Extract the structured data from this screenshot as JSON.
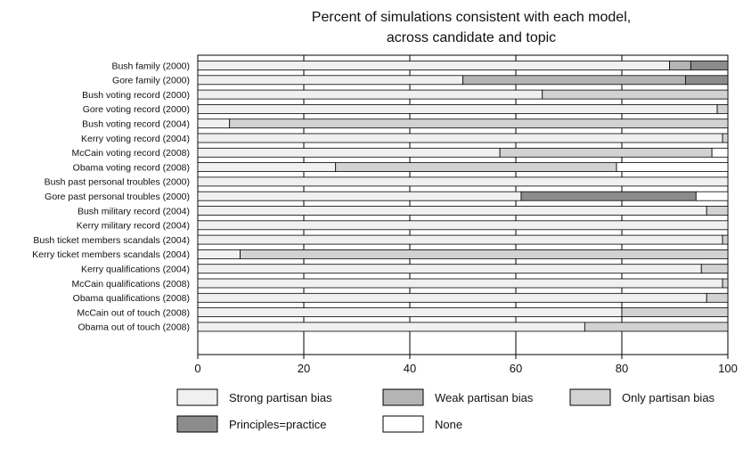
{
  "chart_data": {
    "type": "bar",
    "orientation": "horizontal",
    "stacked": true,
    "title_lines": [
      "Percent of simulations consistent with each model,",
      "across candidate and topic"
    ],
    "categories": [
      "Bush family (2000)",
      "Gore family (2000)",
      "Bush voting record (2000)",
      "Gore voting record (2000)",
      "Bush voting record (2004)",
      "Kerry voting record (2004)",
      "McCain voting record (2008)",
      "Obama voting record (2008)",
      "Bush past personal troubles (2000)",
      "Gore past personal troubles (2000)",
      "Bush military record (2004)",
      "Kerry military record (2004)",
      "Bush ticket members scandals (2004)",
      "Kerry ticket members scandals (2004)",
      "Kerry qualifications (2004)",
      "McCain qualifications (2008)",
      "Obama qualifications (2008)",
      "McCain out of touch (2008)",
      "Obama out of touch (2008)"
    ],
    "series": [
      {
        "name": "Strong partisan bias",
        "color": "#f0f0f0",
        "values": [
          89,
          50,
          65,
          98,
          6,
          99,
          57,
          26,
          100,
          61,
          96,
          100,
          99,
          8,
          95,
          99,
          96,
          80,
          73
        ]
      },
      {
        "name": "Weak partisan bias",
        "color": "#b4b4b4",
        "values": [
          4,
          42,
          0,
          0,
          0,
          0,
          0,
          0,
          0,
          0,
          0,
          0,
          0,
          0,
          0,
          0,
          0,
          0,
          0
        ]
      },
      {
        "name": "Only partisan bias",
        "color": "#d2d2d2",
        "values": [
          0,
          0,
          35,
          2,
          94,
          1,
          40,
          53,
          0,
          0,
          4,
          0,
          1,
          92,
          5,
          1,
          4,
          20,
          27
        ]
      },
      {
        "name": "Principles=practice",
        "color": "#8c8c8c",
        "values": [
          7,
          8,
          0,
          0,
          0,
          0,
          0,
          0,
          0,
          33,
          0,
          0,
          0,
          0,
          0,
          0,
          0,
          0,
          0
        ]
      },
      {
        "name": "None",
        "color": "#ffffff",
        "values": [
          0,
          0,
          0,
          0,
          0,
          0,
          3,
          21,
          0,
          6,
          0,
          0,
          0,
          0,
          0,
          0,
          0,
          0,
          0
        ]
      }
    ],
    "xlim": [
      0,
      100
    ],
    "x_ticks": [
      0,
      20,
      40,
      60,
      80,
      100
    ],
    "grid": "vertical",
    "legend_position": "bottom"
  }
}
